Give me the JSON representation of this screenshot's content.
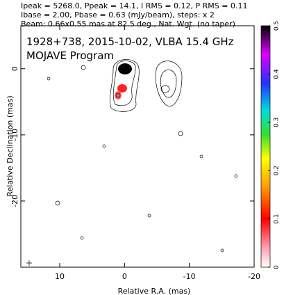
{
  "chart_data": {
    "type": "contour",
    "header": [
      "Ipeak = 5268.0, Ppeak = 14.1, I RMS = 0.12, P RMS = 0.11",
      "Ibase = 2.00, Pbase = 0.63 (mJy/beam), steps: x 2",
      "Beam: 0.66x0.55 mas at 82.5 deg., Nat. Wgt. (no taper)"
    ],
    "title": "1928+738, 2015-10-02, VLBA 15.4 GHz",
    "subtitle": "MOJAVE Program",
    "x_label": "Relative R.A. (mas)",
    "y_label": "Relative Declination (mas)",
    "xlim": [
      16,
      -20
    ],
    "xticks": [
      10,
      0,
      -10,
      -20
    ],
    "ylim": [
      6.5,
      -30
    ],
    "yticks": [
      0,
      -10,
      -20
    ],
    "colorbar": {
      "lim": [
        0,
        0.5
      ],
      "ticks": [
        0,
        0.1,
        0.2,
        0.3,
        0.4,
        0.5
      ]
    }
  }
}
